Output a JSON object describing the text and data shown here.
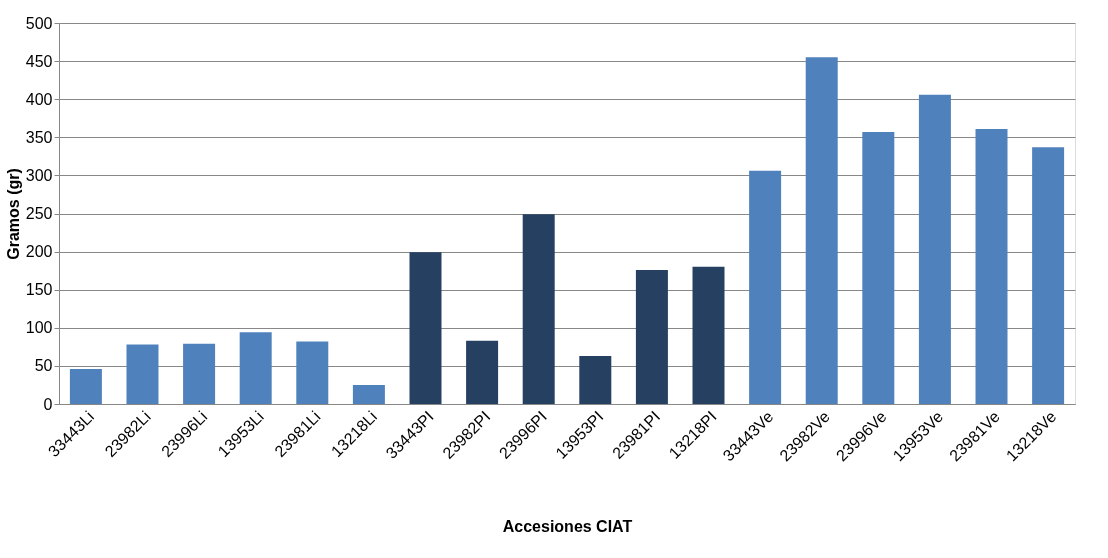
{
  "chart_data": {
    "type": "bar",
    "xlabel": "Accesiones CIAT",
    "ylabel": "Gramos  (gr)",
    "categories": [
      "33443Li",
      "23982Li",
      "23996Li",
      "13953Li",
      "23981Li",
      "13218Li",
      "33443PI",
      "23982PI",
      "23996PI",
      "13953PI",
      "23981PI",
      "13218PI",
      "33443Ve",
      "23982Ve",
      "23996Ve",
      "13953Ve",
      "23981Ve",
      "13218Ve"
    ],
    "values": [
      46,
      78,
      79,
      94,
      82,
      25,
      199,
      83,
      249,
      63,
      176,
      180,
      306,
      455,
      357,
      406,
      361,
      337
    ],
    "colors": [
      "#4f81bd",
      "#4f81bd",
      "#4f81bd",
      "#4f81bd",
      "#4f81bd",
      "#4f81bd",
      "#254061",
      "#254061",
      "#254061",
      "#254061",
      "#254061",
      "#254061",
      "#4f81bd",
      "#4f81bd",
      "#4f81bd",
      "#4f81bd",
      "#4f81bd",
      "#4f81bd"
    ],
    "ylim": [
      0,
      500
    ],
    "yticks": [
      0,
      50,
      100,
      150,
      200,
      250,
      300,
      350,
      400,
      450,
      500
    ],
    "grid": "y"
  }
}
